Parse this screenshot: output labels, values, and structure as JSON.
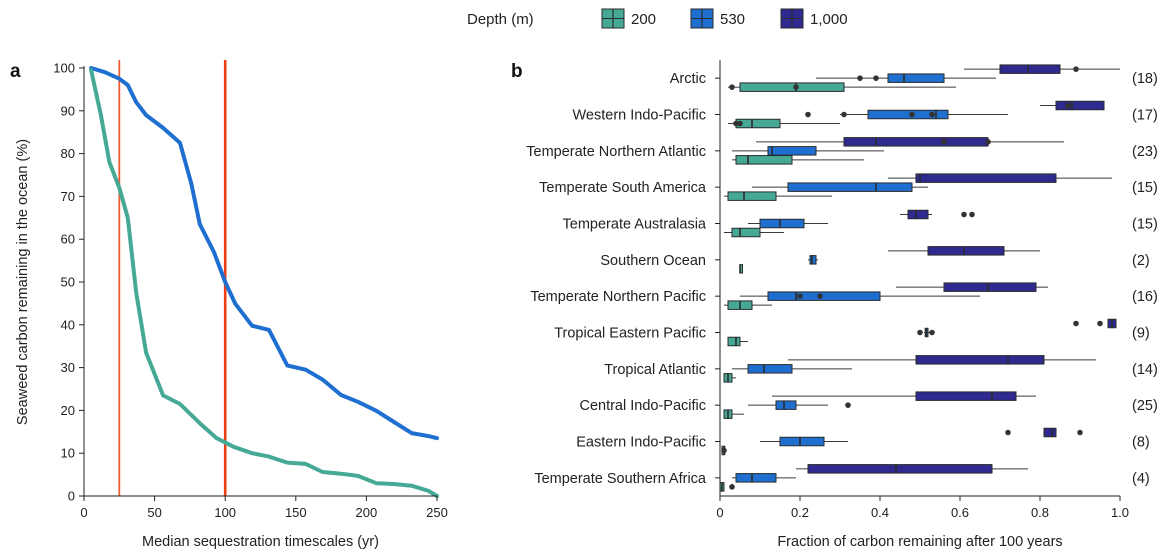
{
  "legend": {
    "title": "Depth (m)",
    "items": [
      {
        "label": "200",
        "color": "#45a996"
      },
      {
        "label": "530",
        "color": "#1f6fd1"
      },
      {
        "label": "1,000",
        "color": "#2e2a8f"
      }
    ]
  },
  "chart_data": [
    {
      "panel": "a",
      "type": "line",
      "xlabel": "Median sequestration timescales (yr)",
      "ylabel": "Seaweed carbon remaining in the ocean (%)",
      "xlim": [
        0,
        250
      ],
      "ylim": [
        0,
        100
      ],
      "xticks": [
        0,
        50,
        100,
        150,
        200,
        250
      ],
      "yticks": [
        0,
        10,
        20,
        30,
        40,
        50,
        60,
        70,
        80,
        90,
        100
      ],
      "vlines": [
        {
          "x": 25,
          "color": "#ee5a32"
        },
        {
          "x": 100,
          "color": "#ee3f12"
        }
      ],
      "series": [
        {
          "color": "#1f6fd1",
          "points": [
            [
              5,
              100
            ],
            [
              15,
              99
            ],
            [
              25,
              97.5
            ],
            [
              31,
              96
            ],
            [
              37,
              92
            ],
            [
              44,
              89
            ],
            [
              56,
              86
            ],
            [
              68,
              82.5
            ],
            [
              76,
              73
            ],
            [
              82,
              63.5
            ],
            [
              92,
              57
            ],
            [
              100,
              50
            ],
            [
              107,
              45
            ],
            [
              119,
              39.8
            ],
            [
              131,
              38.8
            ],
            [
              144,
              30.5
            ],
            [
              157,
              29.5
            ],
            [
              169,
              27.2
            ],
            [
              182,
              23.6
            ],
            [
              194,
              22
            ],
            [
              207,
              19.9
            ],
            [
              219,
              17.4
            ],
            [
              232,
              14.7
            ],
            [
              244,
              14
            ],
            [
              250,
              13.5
            ]
          ]
        },
        {
          "color": "#45a996",
          "points": [
            [
              5,
              99.5
            ],
            [
              12,
              89
            ],
            [
              18,
              78
            ],
            [
              25,
              72
            ],
            [
              31,
              65
            ],
            [
              37,
              47.5
            ],
            [
              44,
              33.5
            ],
            [
              56,
              23.5
            ],
            [
              68,
              21.5
            ],
            [
              82,
              17
            ],
            [
              94,
              13.5
            ],
            [
              106,
              11.5
            ],
            [
              119,
              10
            ],
            [
              131,
              9.2
            ],
            [
              144,
              7.8
            ],
            [
              157,
              7.5
            ],
            [
              169,
              5.6
            ],
            [
              182,
              5.2
            ],
            [
              194,
              4.7
            ],
            [
              207,
              3
            ],
            [
              219,
              2.8
            ],
            [
              232,
              2.4
            ],
            [
              244,
              1.2
            ],
            [
              250,
              0
            ]
          ]
        }
      ]
    },
    {
      "panel": "b",
      "type": "box",
      "xlabel": "Fraction of carbon remaining after 100 years",
      "xlim": [
        0,
        1.0
      ],
      "xticks": [
        0,
        0.2,
        0.4,
        0.6,
        0.8,
        1.0
      ],
      "xticklabels": [
        "0",
        "0.2",
        "0.4",
        "0.6",
        "0.8",
        "1.0"
      ],
      "categories": [
        {
          "name": "Arctic",
          "n": "(18)",
          "boxes": {
            "200": {
              "wl": 0.02,
              "q1": 0.05,
              "med": 0.19,
              "q3": 0.31,
              "wh": 0.59,
              "out": [
                0.03,
                0.19
              ]
            },
            "530": {
              "wl": 0.24,
              "q1": 0.42,
              "med": 0.46,
              "q3": 0.56,
              "wh": 0.69,
              "out": [
                0.35,
                0.39
              ]
            },
            "1,000": {
              "wl": 0.61,
              "q1": 0.7,
              "med": 0.77,
              "q3": 0.85,
              "wh": 1.0,
              "out": [
                0.89
              ]
            }
          }
        },
        {
          "name": "Western Indo-Pacific",
          "n": "(17)",
          "boxes": {
            "200": {
              "wl": 0.02,
              "q1": 0.04,
              "med": 0.08,
              "q3": 0.15,
              "wh": 0.3,
              "out": [
                0.04,
                0.05
              ]
            },
            "530": {
              "wl": 0.3,
              "q1": 0.37,
              "med": 0.54,
              "q3": 0.57,
              "wh": 0.72,
              "out": [
                0.22,
                0.31,
                0.48,
                0.53
              ]
            },
            "1,000": {
              "wl": 0.8,
              "q1": 0.84,
              "med": 0.88,
              "q3": 0.96,
              "wh": 0.96,
              "out": [
                0.87
              ]
            }
          }
        },
        {
          "name": "Temperate Northern Atlantic",
          "n": "(23)",
          "boxes": {
            "200": {
              "wl": 0.03,
              "q1": 0.04,
              "med": 0.07,
              "q3": 0.18,
              "wh": 0.36,
              "out": []
            },
            "530": {
              "wl": 0.03,
              "q1": 0.12,
              "med": 0.13,
              "q3": 0.24,
              "wh": 0.41,
              "out": []
            },
            "1,000": {
              "wl": 0.09,
              "q1": 0.31,
              "med": 0.39,
              "q3": 0.67,
              "wh": 0.86,
              "out": [
                0.56,
                0.67
              ]
            }
          }
        },
        {
          "name": "Temperate South America",
          "n": "(15)",
          "boxes": {
            "200": {
              "wl": 0.01,
              "q1": 0.02,
              "med": 0.06,
              "q3": 0.14,
              "wh": 0.28,
              "out": []
            },
            "530": {
              "wl": 0.08,
              "q1": 0.17,
              "med": 0.39,
              "q3": 0.48,
              "wh": 0.52,
              "out": []
            },
            "1,000": {
              "wl": 0.42,
              "q1": 0.49,
              "med": 0.5,
              "q3": 0.84,
              "wh": 0.98,
              "out": []
            }
          }
        },
        {
          "name": "Temperate Australasia",
          "n": "(15)",
          "boxes": {
            "200": {
              "wl": 0.01,
              "q1": 0.03,
              "med": 0.05,
              "q3": 0.1,
              "wh": 0.16,
              "out": []
            },
            "530": {
              "wl": 0.07,
              "q1": 0.1,
              "med": 0.15,
              "q3": 0.21,
              "wh": 0.27,
              "out": []
            },
            "1,000": {
              "wl": 0.45,
              "q1": 0.47,
              "med": 0.49,
              "q3": 0.52,
              "wh": 0.53,
              "out": [
                0.61,
                0.63
              ]
            }
          }
        },
        {
          "name": "Southern Ocean",
          "n": "(2)",
          "boxes": {
            "200": {
              "wl": 0.05,
              "q1": 0.05,
              "med": 0.05,
              "q3": 0.05,
              "wh": 0.05,
              "out": []
            },
            "530": {
              "wl": 0.22,
              "q1": 0.225,
              "med": 0.23,
              "q3": 0.24,
              "wh": 0.245,
              "out": []
            },
            "1,000": {
              "wl": 0.42,
              "q1": 0.52,
              "med": 0.61,
              "q3": 0.71,
              "wh": 0.8,
              "out": []
            }
          }
        },
        {
          "name": "Temperate Northern Pacific",
          "n": "(16)",
          "boxes": {
            "200": {
              "wl": 0.01,
              "q1": 0.02,
              "med": 0.05,
              "q3": 0.08,
              "wh": 0.13,
              "out": []
            },
            "530": {
              "wl": 0.05,
              "q1": 0.12,
              "med": 0.19,
              "q3": 0.4,
              "wh": 0.65,
              "out": [
                0.2,
                0.25
              ]
            },
            "1,000": {
              "wl": 0.44,
              "q1": 0.56,
              "med": 0.67,
              "q3": 0.79,
              "wh": 0.82,
              "out": []
            }
          }
        },
        {
          "name": "Tropical Eastern Pacific",
          "n": "(9)",
          "boxes": {
            "200": {
              "wl": 0.02,
              "q1": 0.02,
              "med": 0.04,
              "q3": 0.05,
              "wh": 0.07,
              "out": []
            },
            "530": {
              "wl": 0.51,
              "q1": 0.513,
              "med": 0.516,
              "q3": 0.52,
              "wh": 0.524,
              "out": [
                0.5,
                0.53
              ]
            },
            "1,000": {
              "wl": 0.97,
              "q1": 0.97,
              "med": 0.98,
              "q3": 0.99,
              "wh": 0.99,
              "out": [
                0.89,
                0.95
              ]
            }
          }
        },
        {
          "name": "Tropical Atlantic",
          "n": "(14)",
          "boxes": {
            "200": {
              "wl": 0.01,
              "q1": 0.01,
              "med": 0.02,
              "q3": 0.03,
              "wh": 0.04,
              "out": []
            },
            "530": {
              "wl": 0.03,
              "q1": 0.07,
              "med": 0.11,
              "q3": 0.18,
              "wh": 0.33,
              "out": []
            },
            "1,000": {
              "wl": 0.17,
              "q1": 0.49,
              "med": 0.72,
              "q3": 0.81,
              "wh": 0.94,
              "out": []
            }
          }
        },
        {
          "name": "Central Indo-Pacific",
          "n": "(25)",
          "boxes": {
            "200": {
              "wl": 0.01,
              "q1": 0.01,
              "med": 0.02,
              "q3": 0.03,
              "wh": 0.06,
              "out": []
            },
            "530": {
              "wl": 0.07,
              "q1": 0.14,
              "med": 0.16,
              "q3": 0.19,
              "wh": 0.27,
              "out": [
                0.32
              ]
            },
            "1,000": {
              "wl": 0.13,
              "q1": 0.49,
              "med": 0.68,
              "q3": 0.74,
              "wh": 0.79,
              "out": []
            }
          }
        },
        {
          "name": "Eastern Indo-Pacific",
          "n": "(8)",
          "boxes": {
            "200": {
              "wl": 0.005,
              "q1": 0.005,
              "med": 0.01,
              "q3": 0.012,
              "wh": 0.015,
              "out": [
                0.01
              ]
            },
            "530": {
              "wl": 0.1,
              "q1": 0.15,
              "med": 0.2,
              "q3": 0.26,
              "wh": 0.32,
              "out": []
            },
            "1,000": {
              "wl": 0.81,
              "q1": 0.81,
              "med": 0.83,
              "q3": 0.84,
              "wh": 0.84,
              "out": [
                0.72,
                0.9
              ]
            }
          }
        },
        {
          "name": "Temperate Southern Africa",
          "n": "(4)",
          "boxes": {
            "200": {
              "wl": 0.0,
              "q1": 0.0,
              "med": 0.005,
              "q3": 0.01,
              "wh": 0.01,
              "out": [
                0.03
              ]
            },
            "530": {
              "wl": 0.03,
              "q1": 0.04,
              "med": 0.08,
              "q3": 0.14,
              "wh": 0.19,
              "out": []
            },
            "1,000": {
              "wl": 0.19,
              "q1": 0.22,
              "med": 0.44,
              "q3": 0.68,
              "wh": 0.77,
              "out": []
            }
          }
        }
      ]
    }
  ]
}
